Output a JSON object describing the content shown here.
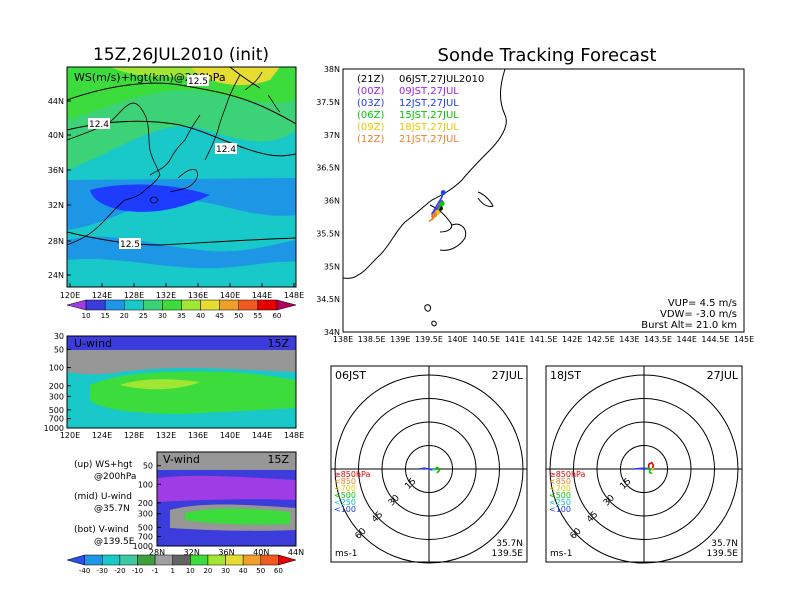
{
  "panels": {
    "map": {
      "title": "15Z,26JUL2010 (init)",
      "label": "WS(m/s)+hgt(km)@200hPa",
      "contour_labels": [
        "12.5",
        "12.4",
        "12.4",
        "12.5"
      ],
      "lat_ticks": [
        "44N",
        "40N",
        "36N",
        "32N",
        "28N",
        "24N"
      ],
      "lon_ticks": [
        "120E",
        "124E",
        "128E",
        "132E",
        "136E",
        "140E",
        "144E",
        "148E"
      ]
    },
    "ws_colorbar": {
      "ticks": [
        "10",
        "15",
        "20",
        "25",
        "30",
        "35",
        "40",
        "45",
        "50",
        "55",
        "60"
      ]
    },
    "uwind": {
      "label": "U-wind",
      "time": "15Z",
      "p_ticks": [
        "30",
        "50",
        "100",
        "200",
        "300",
        "500",
        "700",
        "1000"
      ],
      "lon_ticks": [
        "120E",
        "124E",
        "128E",
        "132E",
        "136E",
        "140E",
        "144E",
        "148E"
      ]
    },
    "vwind": {
      "label": "V-wind",
      "time": "15Z",
      "p_ticks": [
        "50",
        "100",
        "200",
        "300",
        "500",
        "700",
        "1000"
      ],
      "lat_ticks": [
        "28N",
        "32N",
        "36N",
        "40N",
        "44N"
      ]
    },
    "wind_colorbar": {
      "ticks": [
        "-40",
        "-30",
        "-20",
        "-10",
        "-1",
        "1",
        "10",
        "20",
        "30",
        "40",
        "50",
        "60"
      ]
    },
    "legend_lines": [
      "(up) WS+hgt",
      "@200hPa",
      "(mid) U-wind",
      "@35.7N",
      "(bot) V-wind",
      "@139.5E"
    ],
    "track": {
      "title": "Sonde Tracking Forecast",
      "lat_ticks": [
        "38N",
        "37.5N",
        "37N",
        "36.5N",
        "36N",
        "35.5N",
        "35N",
        "34.5N",
        "34N"
      ],
      "lon_ticks": [
        "138E",
        "138.5E",
        "139E",
        "139.5E",
        "140E",
        "140.5E",
        "141E",
        "141.5E",
        "142E",
        "142.5E",
        "143E",
        "143.5E",
        "144E",
        "144.5E",
        "145E"
      ],
      "info": [
        "VUP= 4.5 m/s",
        "VDW= -3.0 m/s",
        "Burst Alt= 21.0 km"
      ],
      "launches": [
        {
          "code": "(21Z)",
          "jst": "06JST,27JUL2010",
          "color": "#000000"
        },
        {
          "code": "(00Z)",
          "jst": "09JST,27JUL",
          "color": "#a020f0"
        },
        {
          "code": "(03Z)",
          "jst": "12JST,27JUL",
          "color": "#1e3cff"
        },
        {
          "code": "(06Z)",
          "jst": "15JST,27JUL",
          "color": "#00c800"
        },
        {
          "code": "(09Z)",
          "jst": "18JST,27JUL",
          "color": "#e6c800"
        },
        {
          "code": "(12Z)",
          "jst": "21JST,27JUL",
          "color": "#f08228"
        }
      ]
    },
    "hodo1": {
      "time": "06JST",
      "date": "27JUL",
      "ring_labels": [
        "15",
        "30",
        "45",
        "60"
      ],
      "unit": "ms-1",
      "lat": "35.7N",
      "lon": "139.5E"
    },
    "hodo2": {
      "time": "18JST",
      "date": "27JUL",
      "ring_labels": [
        "15",
        "30",
        "45",
        "60"
      ],
      "unit": "ms-1",
      "lat": "35.7N",
      "lon": "139.5E"
    },
    "hodo_legend": [
      {
        "text": "≥850hPa",
        "color": "#e60000"
      },
      {
        "text": "<850",
        "color": "#f08228"
      },
      {
        "text": "<700",
        "color": "#e6c800"
      },
      {
        "text": "<500",
        "color": "#00c800"
      },
      {
        "text": "<250",
        "color": "#00c8c8"
      },
      {
        "text": "<100",
        "color": "#1e3cff"
      }
    ]
  },
  "chart_data": [
    {
      "type": "heatmap",
      "title": "15Z,26JUL2010 (init)",
      "label": "WS(m/s)+hgt(km)@200hPa",
      "x_range": [
        "120E",
        "148E"
      ],
      "y_range": [
        "24N",
        "44N"
      ],
      "colorbar": [
        10,
        15,
        20,
        25,
        30,
        35,
        40,
        45,
        50,
        55,
        60
      ],
      "contour_labels": [
        12.5,
        12.4,
        12.4,
        12.5
      ]
    },
    {
      "type": "heatmap",
      "label": "U-wind",
      "time": "15Z",
      "x_range": [
        "120E",
        "148E"
      ],
      "y_range_hPa": [
        1000,
        30
      ]
    },
    {
      "type": "heatmap",
      "label": "V-wind",
      "time": "15Z",
      "x_range": [
        "28N",
        "44N"
      ],
      "y_range_hPa": [
        1000,
        30
      ],
      "colorbar": [
        -40,
        -30,
        -20,
        -10,
        -1,
        1,
        10,
        20,
        30,
        40,
        50,
        60
      ]
    },
    {
      "type": "line",
      "title": "Sonde Tracking Forecast",
      "x_range": [
        138,
        145
      ],
      "y_range": [
        34,
        38
      ],
      "series": [
        {
          "name": "(21Z) 06JST,27JUL2010",
          "points": [
            [
              139.55,
              35.8
            ],
            [
              139.62,
              35.86
            ],
            [
              139.7,
              35.88
            ]
          ]
        },
        {
          "name": "(00Z) 09JST,27JUL",
          "points": [
            [
              139.55,
              35.75
            ],
            [
              139.62,
              35.85
            ],
            [
              139.68,
              35.93
            ],
            [
              139.72,
              35.97
            ]
          ]
        },
        {
          "name": "(03Z) 12JST,27JUL",
          "points": [
            [
              139.55,
              35.78
            ],
            [
              139.62,
              35.9
            ],
            [
              139.72,
              36.04
            ],
            [
              139.75,
              36.12
            ]
          ]
        },
        {
          "name": "(06Z) 15JST,27JUL",
          "points": [
            [
              139.55,
              35.72
            ],
            [
              139.62,
              35.8
            ],
            [
              139.7,
              35.92
            ],
            [
              139.73,
              35.95
            ]
          ]
        },
        {
          "name": "(09Z) 18JST,27JUL",
          "points": [
            [
              139.55,
              35.7
            ],
            [
              139.6,
              35.75
            ],
            [
              139.65,
              35.82
            ]
          ]
        },
        {
          "name": "(12Z) 21JST,27JUL",
          "points": [
            [
              139.5,
              35.68
            ],
            [
              139.56,
              35.72
            ],
            [
              139.6,
              35.78
            ]
          ]
        }
      ],
      "info": {
        "VUP_m_s": 4.5,
        "VDW_m_s": -3.0,
        "burst_alt_km": 21.0
      }
    },
    {
      "type": "scatter",
      "title": "06JST 27JUL hodograph",
      "rings_ms": [
        15,
        30,
        45,
        60
      ],
      "location": [
        "35.7N",
        "139.5E"
      ]
    },
    {
      "type": "scatter",
      "title": "18JST 27JUL hodograph",
      "rings_ms": [
        15,
        30,
        45,
        60
      ],
      "location": [
        "35.7N",
        "139.5E"
      ]
    }
  ]
}
